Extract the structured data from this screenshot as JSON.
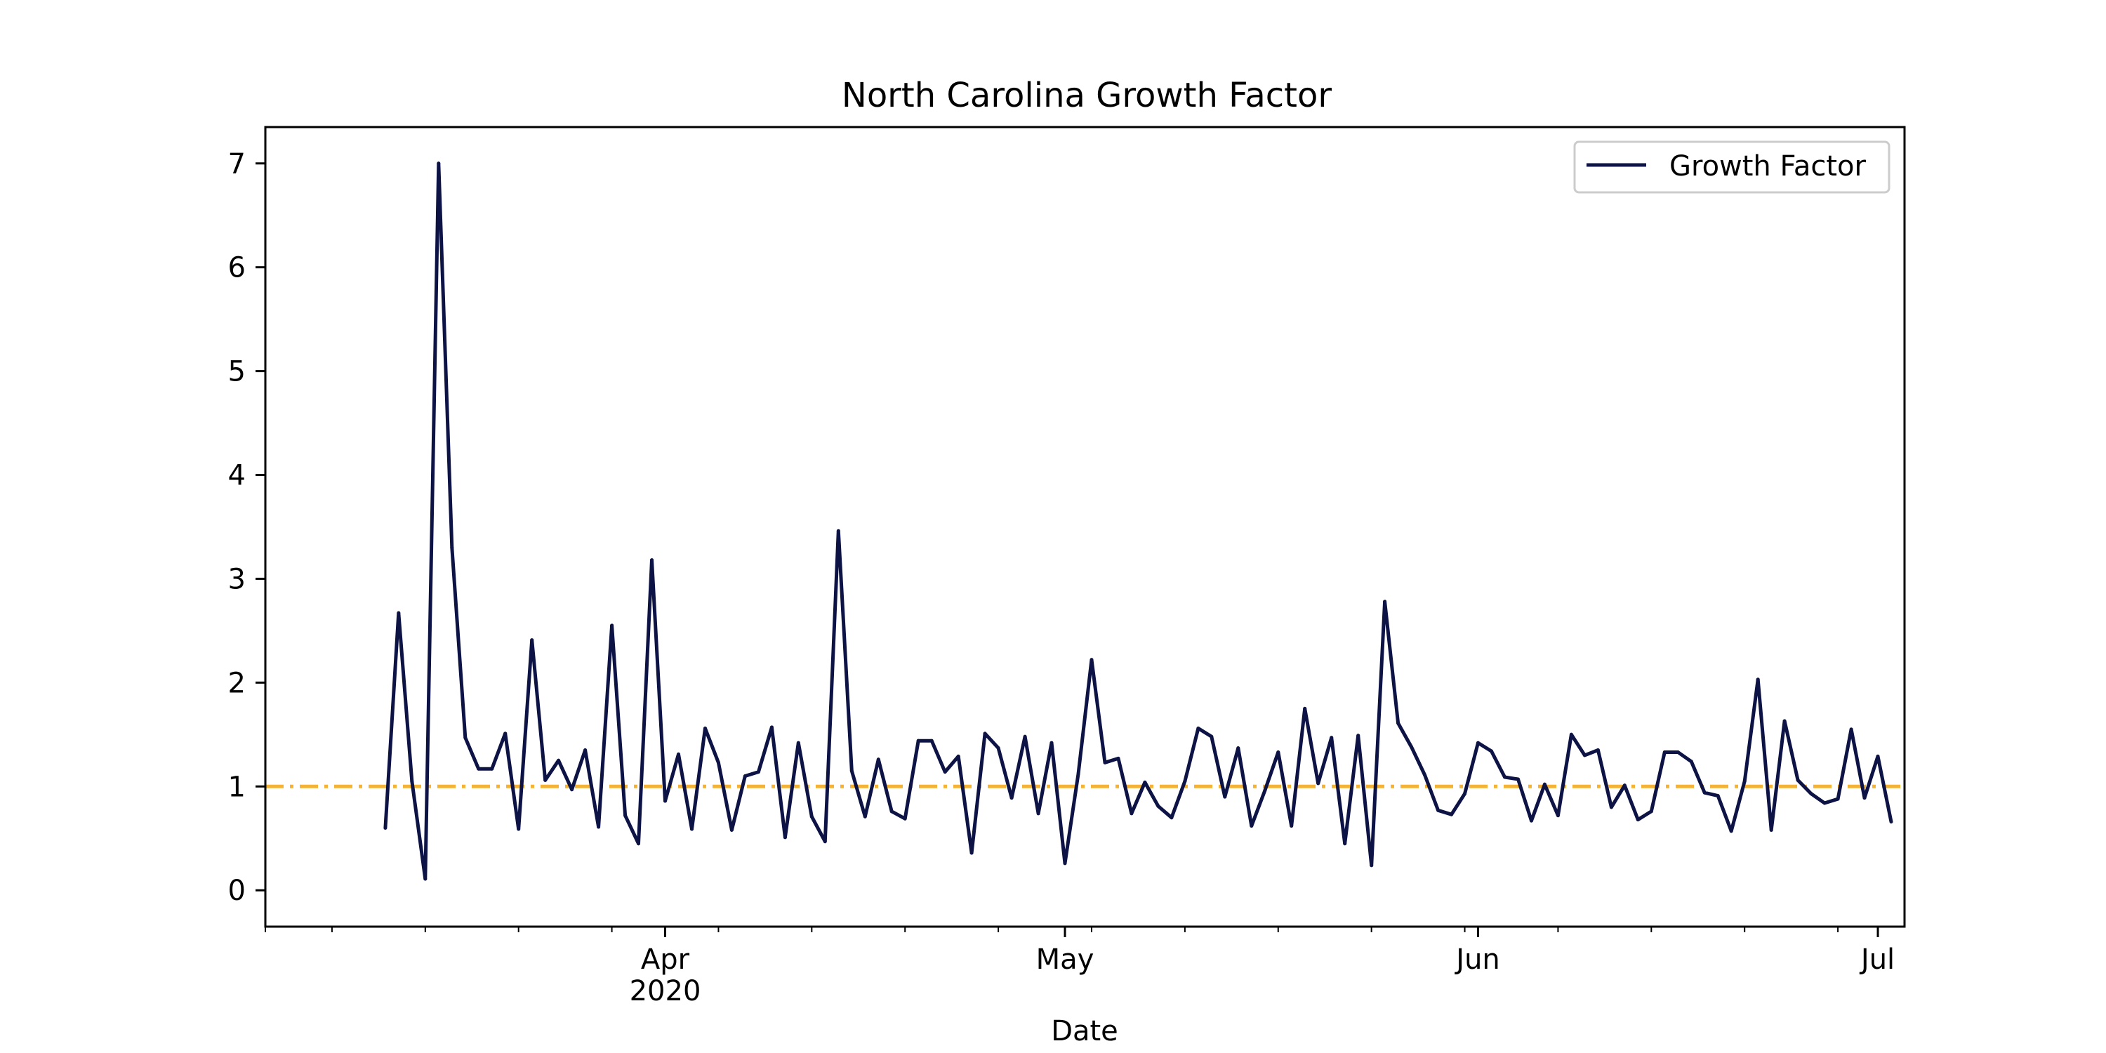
{
  "chart_data": {
    "type": "line",
    "title": "North Carolina Growth Factor",
    "xlabel": "Date",
    "ylabel": "",
    "xlim": [
      "2020-03-02",
      "2020-07-03"
    ],
    "ylim": [
      -0.35,
      7.35
    ],
    "x_major_ticks": [
      {
        "date": "2020-04-01",
        "label": "Apr",
        "sublabel": "2020"
      },
      {
        "date": "2020-05-01",
        "label": "May",
        "sublabel": ""
      },
      {
        "date": "2020-06-01",
        "label": "Jun",
        "sublabel": ""
      },
      {
        "date": "2020-07-01",
        "label": "Jul",
        "sublabel": ""
      }
    ],
    "x_minor_ticks": [
      "2020-03-02",
      "2020-03-07",
      "2020-03-14",
      "2020-03-21",
      "2020-03-28",
      "2020-04-05",
      "2020-04-12",
      "2020-04-19",
      "2020-04-26",
      "2020-05-03",
      "2020-05-10",
      "2020-05-17",
      "2020-05-24",
      "2020-05-31",
      "2020-06-07",
      "2020-06-14",
      "2020-06-21",
      "2020-06-28"
    ],
    "y_ticks": [
      0,
      1,
      2,
      3,
      4,
      5,
      6,
      7
    ],
    "grid": false,
    "legend": {
      "position": "top-right"
    },
    "series": [
      {
        "name": "Growth Factor",
        "color": "#0d1445",
        "x_start": "2020-03-11",
        "x_step_days": 1,
        "values": [
          0.6,
          2.67,
          1.05,
          0.11,
          7.0,
          3.3,
          1.47,
          1.17,
          1.17,
          1.51,
          0.59,
          2.41,
          1.06,
          1.25,
          0.97,
          1.35,
          0.61,
          2.55,
          0.72,
          0.45,
          3.18,
          0.86,
          1.31,
          0.59,
          1.56,
          1.23,
          0.58,
          1.1,
          1.14,
          1.57,
          0.51,
          1.42,
          0.71,
          0.47,
          3.46,
          1.15,
          0.71,
          1.26,
          0.76,
          0.69,
          1.44,
          1.44,
          1.14,
          1.29,
          0.36,
          1.51,
          1.37,
          0.89,
          1.48,
          0.74,
          1.42,
          0.26,
          1.12,
          2.22,
          1.23,
          1.27,
          0.74,
          1.04,
          0.81,
          0.7,
          1.05,
          1.56,
          1.48,
          0.9,
          1.37,
          0.62,
          0.96,
          1.33,
          0.62,
          1.75,
          1.03,
          1.47,
          0.45,
          1.49,
          0.24,
          2.78,
          1.61,
          1.38,
          1.11,
          0.77,
          0.73,
          0.93,
          1.42,
          1.34,
          1.09,
          1.07,
          0.67,
          1.02,
          0.72,
          1.5,
          1.3,
          1.35,
          0.8,
          1.01,
          0.68,
          0.76,
          1.33,
          1.33,
          1.24,
          0.94,
          0.91,
          0.57,
          1.05,
          2.03,
          0.58,
          1.63,
          1.06,
          0.93,
          0.84,
          0.88,
          1.55,
          0.89,
          1.29,
          0.66
        ]
      }
    ],
    "reference_line": {
      "y": 1,
      "color": "#f5b335",
      "style": "dash-dot"
    }
  }
}
